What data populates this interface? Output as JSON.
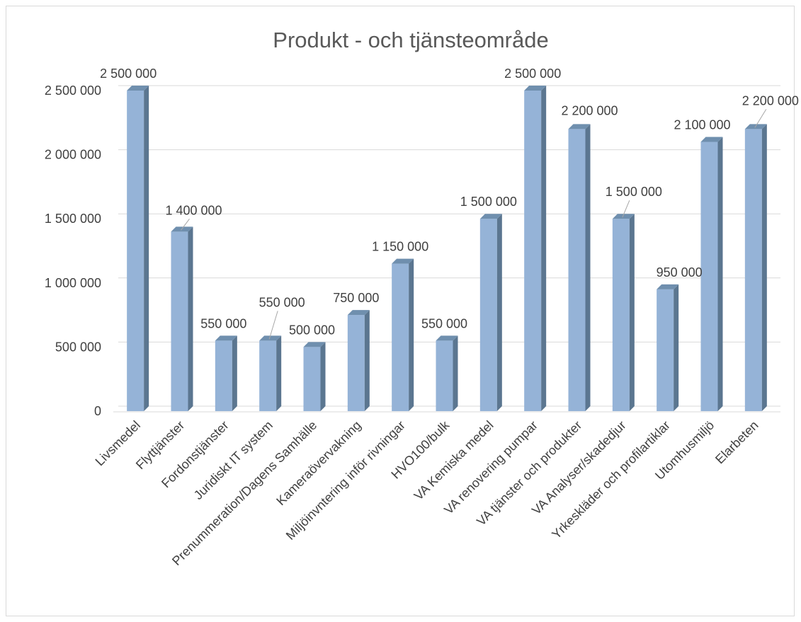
{
  "chart_data": {
    "type": "bar",
    "style": "3d-column",
    "title": "Produkt - och tjänsteområde",
    "xlabel": "",
    "ylabel": "",
    "ylim": [
      0,
      2500000
    ],
    "yticks": [
      0,
      500000,
      1000000,
      1500000,
      2000000,
      2500000
    ],
    "ytick_labels": [
      "0",
      "500 000",
      "1 000 000",
      "1 500 000",
      "2 000 000",
      "2 500 000"
    ],
    "grid": true,
    "legend": "none",
    "colors": {
      "bar_front": "#95b3d7",
      "bar_side": "#5b7690",
      "bar_top": "#6f8fae",
      "gridline": "#d9d9d9",
      "leader_line": "#a6a6a6"
    },
    "categories": [
      "Livsmedel",
      "Flyttjänster",
      "Fordonstjänster",
      "Juridiskt IT system",
      "Prenummeration/Dagens Samhälle",
      "Kameraövervakning",
      "Miljöinvntering inför rivningar",
      "HVO100/bulk",
      "VA Kemiska medel",
      "VA renovering pumpar",
      "VA tjänster och produkter",
      "VA Analyser/skadedjur",
      "Yrkeskläder och profilartiklar",
      "Utomhusmiljö",
      "Elarbeten"
    ],
    "values": [
      2500000,
      1400000,
      550000,
      550000,
      500000,
      750000,
      1150000,
      550000,
      1500000,
      2500000,
      2200000,
      1500000,
      950000,
      2100000,
      2200000
    ],
    "data_labels": [
      "2 500 000",
      "1 400 000",
      "550 000",
      "550 000",
      "500 000",
      "750 000",
      "1 150 000",
      "550 000",
      "1 500 000",
      "2 500 000",
      "2 200 000",
      "1 500 000",
      "950 000",
      "2 100 000",
      "2 200 000"
    ]
  }
}
